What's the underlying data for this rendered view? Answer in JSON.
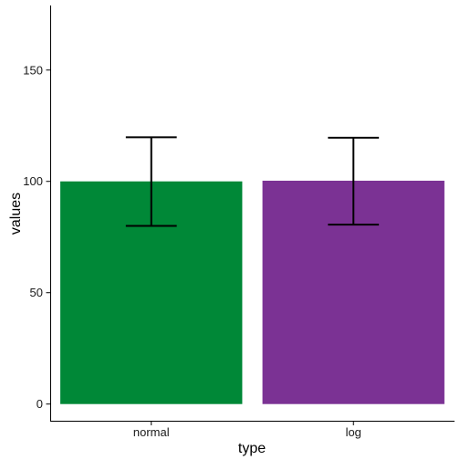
{
  "chart_data": {
    "type": "bar",
    "categories": [
      "normal",
      "log"
    ],
    "values": [
      100,
      100.3
    ],
    "error_low": [
      80,
      80.6
    ],
    "error_high": [
      119.8,
      119.6
    ],
    "colors": [
      "#008837",
      "#7b3294"
    ],
    "xlabel": "type",
    "ylabel": "values",
    "ylim": [
      -7.5,
      179
    ],
    "yticks": [
      0,
      50,
      100,
      150
    ],
    "ytick_labels": [
      "0",
      "50",
      "100",
      "150"
    ],
    "grid": false,
    "legend": "none"
  }
}
